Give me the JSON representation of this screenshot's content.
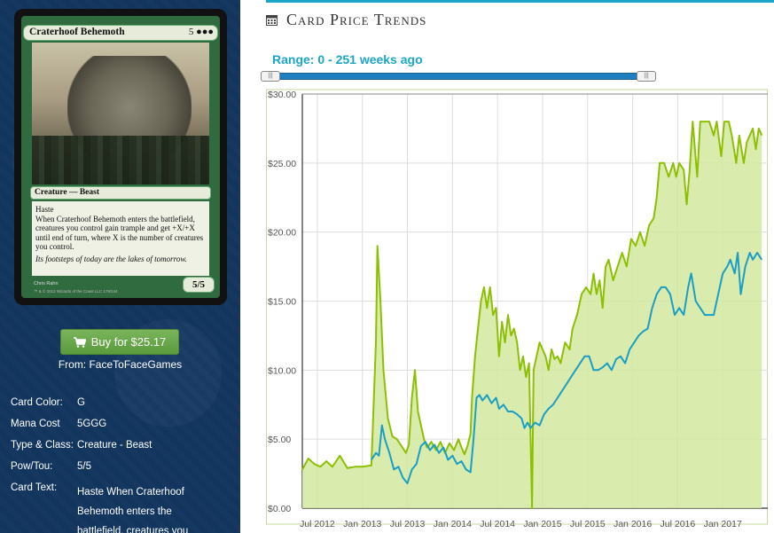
{
  "card": {
    "name": "Craterhoof Behemoth",
    "mana_symbols": "5 ●●●",
    "type_line": "Creature — Beast",
    "rules_1": "Haste",
    "rules_2": "When Craterhoof Behemoth enters the battlefield, creatures you control gain trample and get +X/+X until end of turn, where X is the number of creatures you control.",
    "flavor": "Its footsteps of today are the lakes of tomorrow.",
    "pt": "5/5",
    "artist": "Chris Rahn",
    "legal": "™ & © 2012 Wizards of the Coast LLC 179/244"
  },
  "buy": {
    "label": "Buy for $25.17",
    "from_label": "From: FaceToFaceGames"
  },
  "info": [
    {
      "label": "Card Color:",
      "value": "G"
    },
    {
      "label": "Mana Cost",
      "value": "5GGG"
    },
    {
      "label": "Type & Class:",
      "value": "Creature - Beast"
    },
    {
      "label": "Pow/Tou:",
      "value": "5/5"
    },
    {
      "label": "Card Text:",
      "value": "Haste When Craterhoof Behemoth enters the battlefield, creatures you"
    }
  ],
  "section": {
    "title": "Card Price Trends",
    "range_label": "Range: 0 - 251 weeks ago",
    "icon": "calendar-icon"
  },
  "colors": {
    "green_line": "#8cc000",
    "green_fill": "#d4e8a0",
    "blue_line": "#1b9ec4",
    "accent": "#1ba6c6",
    "button": "#5b9a3d"
  },
  "chart_data": {
    "type": "line",
    "ylim": [
      0,
      30
    ],
    "y_ticks": [
      "$0.00",
      "$5.00",
      "$10.00",
      "$15.00",
      "$20.00",
      "$25.00",
      "$30.00"
    ],
    "x_ticks": [
      "Jul 2012",
      "Jan 2013",
      "Jul 2013",
      "Jan 2014",
      "Jul 2014",
      "Jan 2015",
      "Jul 2015",
      "Jan 2016",
      "Jul 2016",
      "Jan 2017"
    ],
    "series": [
      {
        "style": "area",
        "color": "#8cc000",
        "points": [
          [
            0,
            2.8
          ],
          [
            0.4,
            3.6
          ],
          [
            0.8,
            3.2
          ],
          [
            1.2,
            3.0
          ],
          [
            1.6,
            3.4
          ],
          [
            2.0,
            3.0
          ],
          [
            2.5,
            3.8
          ],
          [
            3.0,
            2.9
          ],
          [
            3.5,
            3.0
          ],
          [
            4.0,
            3.0
          ],
          [
            4.6,
            3.1
          ],
          [
            4.9,
            12.0
          ],
          [
            5.0,
            19.0
          ],
          [
            5.2,
            15.0
          ],
          [
            5.4,
            10.0
          ],
          [
            5.7,
            6.5
          ],
          [
            6.0,
            5.2
          ],
          [
            6.3,
            5.0
          ],
          [
            6.6,
            4.5
          ],
          [
            6.9,
            4.0
          ],
          [
            7.1,
            4.6
          ],
          [
            7.3,
            8.0
          ],
          [
            7.5,
            10.0
          ],
          [
            7.7,
            7.0
          ],
          [
            7.9,
            6.0
          ],
          [
            8.1,
            5.0
          ],
          [
            8.3,
            4.4
          ],
          [
            8.6,
            4.8
          ],
          [
            8.9,
            4.2
          ],
          [
            9.2,
            4.8
          ],
          [
            9.5,
            4.0
          ],
          [
            9.8,
            4.7
          ],
          [
            10.1,
            4.2
          ],
          [
            10.4,
            5.0
          ],
          [
            10.6,
            4.4
          ],
          [
            10.8,
            3.9
          ],
          [
            11.0,
            4.5
          ],
          [
            11.2,
            5.4
          ],
          [
            11.3,
            8.0
          ],
          [
            11.5,
            11.0
          ],
          [
            11.7,
            13.0
          ],
          [
            11.9,
            15.0
          ],
          [
            12.1,
            16.0
          ],
          [
            12.3,
            14.5
          ],
          [
            12.5,
            16.0
          ],
          [
            12.7,
            14.0
          ],
          [
            12.9,
            14.5
          ],
          [
            13.1,
            11.0
          ],
          [
            13.3,
            13.5
          ],
          [
            13.5,
            12.0
          ],
          [
            13.7,
            14.0
          ],
          [
            13.9,
            12.5
          ],
          [
            14.1,
            13.0
          ],
          [
            14.3,
            12.0
          ],
          [
            14.5,
            10.0
          ],
          [
            14.7,
            11.0
          ],
          [
            14.9,
            9.5
          ],
          [
            15.1,
            10.5
          ],
          [
            15.3,
            0.0
          ],
          [
            15.4,
            10.0
          ],
          [
            15.6,
            11.0
          ],
          [
            15.8,
            12.0
          ],
          [
            16.0,
            11.5
          ],
          [
            16.2,
            11.0
          ],
          [
            16.4,
            10.0
          ],
          [
            16.6,
            11.5
          ],
          [
            16.8,
            10.8
          ],
          [
            17.0,
            11.0
          ],
          [
            17.2,
            10.5
          ],
          [
            17.5,
            12.0
          ],
          [
            17.8,
            11.5
          ],
          [
            18.0,
            13.0
          ],
          [
            18.3,
            14.0
          ],
          [
            18.6,
            15.5
          ],
          [
            18.9,
            16.0
          ],
          [
            19.2,
            15.5
          ],
          [
            19.4,
            17.0
          ],
          [
            19.6,
            15.5
          ],
          [
            19.8,
            16.5
          ],
          [
            20.0,
            14.5
          ],
          [
            20.2,
            17.5
          ],
          [
            20.4,
            18.0
          ],
          [
            20.7,
            16.5
          ],
          [
            21.0,
            17.5
          ],
          [
            21.3,
            18.5
          ],
          [
            21.6,
            17.5
          ],
          [
            21.9,
            19.5
          ],
          [
            22.2,
            19.0
          ],
          [
            22.5,
            20.0
          ],
          [
            22.8,
            19.0
          ],
          [
            23.1,
            20.5
          ],
          [
            23.4,
            21.0
          ],
          [
            23.6,
            22.5
          ],
          [
            23.8,
            25.0
          ],
          [
            24.1,
            25.0
          ],
          [
            24.4,
            24.0
          ],
          [
            24.7,
            25.0
          ],
          [
            24.9,
            24.0
          ],
          [
            25.1,
            25.0
          ],
          [
            25.4,
            24.5
          ],
          [
            25.6,
            22.0
          ],
          [
            25.8,
            24.5
          ],
          [
            26.0,
            28.0
          ],
          [
            26.3,
            24.0
          ],
          [
            26.5,
            28.0
          ],
          [
            26.8,
            28.0
          ],
          [
            27.1,
            28.0
          ],
          [
            27.4,
            27.0
          ],
          [
            27.6,
            28.0
          ],
          [
            27.9,
            25.5
          ],
          [
            28.1,
            28.0
          ],
          [
            28.4,
            28.0
          ],
          [
            28.6,
            27.0
          ],
          [
            28.9,
            25.0
          ],
          [
            29.1,
            27.0
          ],
          [
            29.4,
            25.0
          ],
          [
            29.6,
            26.5
          ],
          [
            29.8,
            27.0
          ],
          [
            30.0,
            27.5
          ],
          [
            30.2,
            26.0
          ],
          [
            30.4,
            27.5
          ],
          [
            30.6,
            27.0
          ]
        ]
      },
      {
        "style": "line",
        "color": "#1b9ec4",
        "points": [
          [
            4.6,
            3.5
          ],
          [
            4.9,
            4.0
          ],
          [
            5.1,
            3.8
          ],
          [
            5.3,
            6.0
          ],
          [
            5.5,
            5.0
          ],
          [
            5.8,
            4.0
          ],
          [
            6.1,
            2.8
          ],
          [
            6.4,
            3.0
          ],
          [
            6.7,
            2.2
          ],
          [
            7.0,
            1.8
          ],
          [
            7.3,
            2.8
          ],
          [
            7.6,
            3.2
          ],
          [
            7.9,
            4.5
          ],
          [
            8.2,
            4.8
          ],
          [
            8.5,
            4.2
          ],
          [
            8.8,
            4.6
          ],
          [
            9.1,
            4.0
          ],
          [
            9.4,
            4.4
          ],
          [
            9.7,
            3.5
          ],
          [
            10.0,
            3.8
          ],
          [
            10.3,
            3.2
          ],
          [
            10.6,
            3.4
          ],
          [
            10.9,
            2.8
          ],
          [
            11.2,
            2.6
          ],
          [
            11.4,
            5.0
          ],
          [
            11.6,
            8.0
          ],
          [
            11.8,
            8.2
          ],
          [
            12.0,
            7.8
          ],
          [
            12.3,
            8.2
          ],
          [
            12.6,
            7.6
          ],
          [
            12.9,
            8.0
          ],
          [
            13.1,
            7.2
          ],
          [
            13.4,
            7.5
          ],
          [
            13.7,
            7.0
          ],
          [
            14.0,
            7.0
          ],
          [
            14.3,
            6.8
          ],
          [
            14.6,
            6.5
          ],
          [
            14.8,
            5.8
          ],
          [
            15.0,
            6.2
          ],
          [
            15.2,
            5.8
          ],
          [
            15.5,
            6.2
          ],
          [
            15.8,
            6.0
          ],
          [
            16.1,
            6.8
          ],
          [
            16.4,
            7.2
          ],
          [
            16.7,
            7.5
          ],
          [
            17.0,
            8.0
          ],
          [
            17.3,
            8.5
          ],
          [
            17.6,
            9.0
          ],
          [
            17.9,
            9.5
          ],
          [
            18.2,
            10.0
          ],
          [
            18.5,
            10.5
          ],
          [
            18.8,
            11.0
          ],
          [
            19.1,
            11.0
          ],
          [
            19.4,
            10.0
          ],
          [
            19.7,
            10.0
          ],
          [
            20.0,
            10.2
          ],
          [
            20.3,
            10.5
          ],
          [
            20.6,
            10.0
          ],
          [
            20.9,
            10.8
          ],
          [
            21.2,
            11.0
          ],
          [
            21.5,
            10.5
          ],
          [
            21.8,
            11.5
          ],
          [
            22.1,
            12.0
          ],
          [
            22.4,
            12.5
          ],
          [
            22.7,
            12.8
          ],
          [
            23.0,
            13.0
          ],
          [
            23.3,
            14.5
          ],
          [
            23.6,
            15.5
          ],
          [
            23.9,
            16.0
          ],
          [
            24.2,
            16.0
          ],
          [
            24.5,
            15.5
          ],
          [
            24.8,
            14.0
          ],
          [
            25.1,
            14.5
          ],
          [
            25.4,
            14.0
          ],
          [
            25.7,
            16.0
          ],
          [
            25.9,
            17.0
          ],
          [
            26.2,
            15.0
          ],
          [
            26.5,
            14.5
          ],
          [
            26.8,
            14.0
          ],
          [
            27.1,
            14.0
          ],
          [
            27.4,
            14.0
          ],
          [
            27.7,
            15.5
          ],
          [
            28.0,
            17.0
          ],
          [
            28.3,
            17.5
          ],
          [
            28.5,
            18.0
          ],
          [
            28.8,
            17.0
          ],
          [
            29.0,
            18.5
          ],
          [
            29.2,
            15.5
          ],
          [
            29.5,
            17.5
          ],
          [
            29.8,
            18.5
          ],
          [
            30.0,
            18.0
          ],
          [
            30.3,
            18.5
          ],
          [
            30.6,
            18.0
          ]
        ]
      }
    ],
    "x_range": [
      0,
      31
    ],
    "grid": true
  }
}
